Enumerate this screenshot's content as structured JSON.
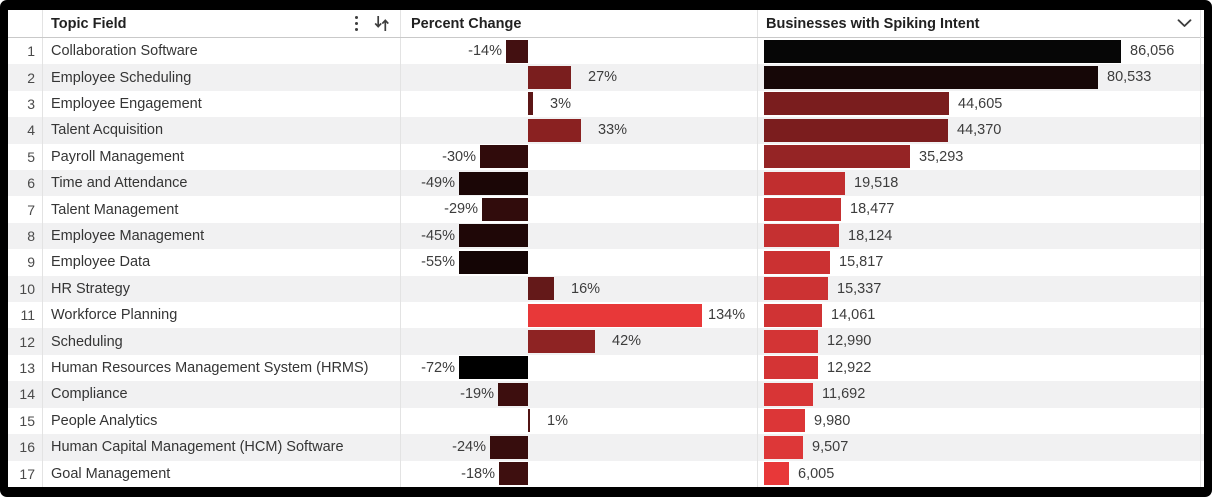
{
  "table": {
    "columns": {
      "topic": "Topic Field",
      "percent": "Percent Change",
      "businesses": "Businesses with Spiking Intent"
    },
    "header_icons": {
      "kebab": "kebab-menu-icon",
      "sort": "sort-arrows-icon",
      "chevron": "chevron-down-icon"
    },
    "colors": {
      "gradient_low": "#000000",
      "gradient_high": "#e83839",
      "zebra_stripe": "#f1f1f2",
      "divider": "#e3e3e3",
      "text": "#353535"
    },
    "rows": [
      {
        "index": "1",
        "topic": "Collaboration Software",
        "percent_change": -14,
        "percent_label": "-14%",
        "businesses": 86056,
        "businesses_label": "86,056",
        "percent_color": "#431011",
        "businesses_color": "#060606"
      },
      {
        "index": "2",
        "topic": "Employee Scheduling",
        "percent_change": 27,
        "percent_label": "27%",
        "businesses": 80533,
        "businesses_label": "80,533",
        "percent_color": "#7a1e1e",
        "businesses_color": "#160707"
      },
      {
        "index": "3",
        "topic": "Employee Engagement",
        "percent_change": 3,
        "percent_label": "3%",
        "businesses": 44605,
        "businesses_label": "44,605",
        "percent_color": "#5c1616",
        "businesses_color": "#7a1d1e"
      },
      {
        "index": "4",
        "topic": "Talent Acquisition",
        "percent_change": 33,
        "percent_label": "33%",
        "businesses": 44370,
        "businesses_label": "44,370",
        "percent_color": "#8a2121",
        "businesses_color": "#7b1d1e"
      },
      {
        "index": "5",
        "topic": "Payroll Management",
        "percent_change": -30,
        "percent_label": "-30%",
        "businesses": 35293,
        "businesses_label": "35,293",
        "percent_color": "#300b0b",
        "businesses_color": "#952425"
      },
      {
        "index": "6",
        "topic": "Time and Attendance",
        "percent_change": -49,
        "percent_label": "-49%",
        "businesses": 19518,
        "businesses_label": "19,518",
        "percent_color": "#1b0606",
        "businesses_color": "#c12e2f"
      },
      {
        "index": "7",
        "topic": "Talent Management",
        "percent_change": -29,
        "percent_label": "-29%",
        "businesses": 18477,
        "businesses_label": "18,477",
        "percent_color": "#310c0c",
        "businesses_color": "#c42f30"
      },
      {
        "index": "8",
        "topic": "Employee Management",
        "percent_change": -45,
        "percent_label": "-45%",
        "businesses": 18124,
        "businesses_label": "18,124",
        "percent_color": "#1f0707",
        "businesses_color": "#c53031"
      },
      {
        "index": "9",
        "topic": "Employee Data",
        "percent_change": -55,
        "percent_label": "-55%",
        "businesses": 15817,
        "businesses_label": "15,817",
        "percent_color": "#140505",
        "businesses_color": "#cb3132"
      },
      {
        "index": "10",
        "topic": "HR Strategy",
        "percent_change": 16,
        "percent_label": "16%",
        "businesses": 15337,
        "businesses_label": "15,337",
        "percent_color": "#641919",
        "businesses_color": "#cc3233"
      },
      {
        "index": "11",
        "topic": "Workforce Planning",
        "percent_change": 134,
        "percent_label": "134%",
        "businesses": 14061,
        "businesses_label": "14,061",
        "percent_color": "#e83839",
        "businesses_color": "#d03334"
      },
      {
        "index": "12",
        "topic": "Scheduling",
        "percent_change": 42,
        "percent_label": "42%",
        "businesses": 12990,
        "businesses_label": "12,990",
        "percent_color": "#8e2323",
        "businesses_color": "#d33435"
      },
      {
        "index": "13",
        "topic": "Human Resources Management System (HRMS)",
        "percent_change": -72,
        "percent_label": "-72%",
        "businesses": 12922,
        "businesses_label": "12,922",
        "percent_color": "#000000",
        "businesses_color": "#d43435"
      },
      {
        "index": "14",
        "topic": "Compliance",
        "percent_change": -19,
        "percent_label": "-19%",
        "businesses": 11692,
        "businesses_label": "11,692",
        "percent_color": "#3d0e0e",
        "businesses_color": "#d83536"
      },
      {
        "index": "15",
        "topic": "People Analytics",
        "percent_change": 1,
        "percent_label": "1%",
        "businesses": 9980,
        "businesses_label": "9,980",
        "percent_color": "#521414",
        "businesses_color": "#dc3637"
      },
      {
        "index": "16",
        "topic": "Human Capital Management (HCM) Software",
        "percent_change": -24,
        "percent_label": "-24%",
        "businesses": 9507,
        "businesses_label": "9,507",
        "percent_color": "#370d0d",
        "businesses_color": "#dd3738"
      },
      {
        "index": "17",
        "topic": "Goal Management",
        "percent_change": -18,
        "percent_label": "-18%",
        "businesses": 6005,
        "businesses_label": "6,005",
        "percent_color": "#3e0f0f",
        "businesses_color": "#e83839"
      }
    ]
  }
}
